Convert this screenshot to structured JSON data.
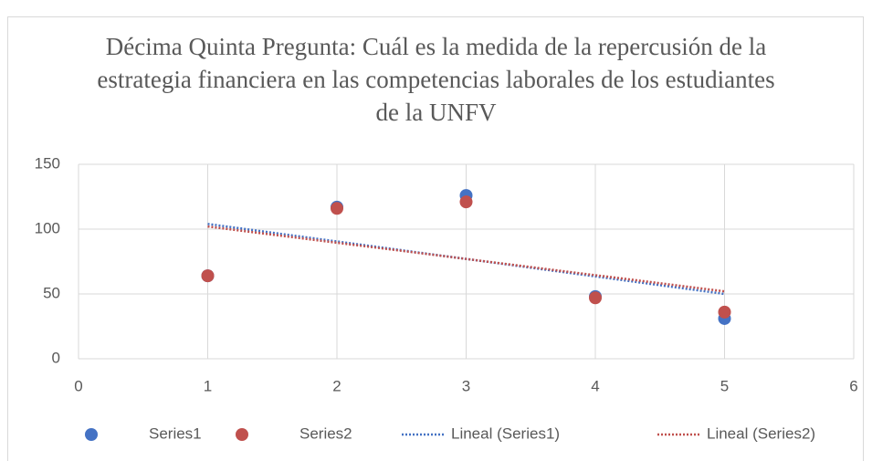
{
  "chart_data": {
    "type": "scatter",
    "title": "Décima Quinta Pregunta: Cuál es la medida de la repercusión de la estrategia financiera en las competencias laborales de los estudiantes de la UNFV",
    "xlim": [
      0,
      6
    ],
    "xticks": [
      0,
      1,
      2,
      3,
      4,
      5,
      6
    ],
    "ylim": [
      0,
      150
    ],
    "yticks": [
      0,
      50,
      100,
      150
    ],
    "grid": true,
    "legend": "bottom",
    "series": [
      {
        "name": "Series1",
        "color": "#4472c4",
        "x": [
          1,
          2,
          3,
          4,
          5
        ],
        "values": [
          64,
          117,
          126,
          48,
          31
        ]
      },
      {
        "name": "Series2",
        "color": "#c0504d",
        "x": [
          1,
          2,
          3,
          4,
          5
        ],
        "values": [
          64,
          116,
          121,
          47,
          36
        ]
      },
      {
        "name": "Lineal (Series1)",
        "type": "trendline",
        "color": "#4472c4",
        "x": [
          1,
          5
        ],
        "values": [
          104,
          50
        ]
      },
      {
        "name": "Lineal (Series2)",
        "type": "trendline",
        "color": "#c0504d",
        "x": [
          1,
          5
        ],
        "values": [
          102,
          52
        ]
      }
    ]
  }
}
